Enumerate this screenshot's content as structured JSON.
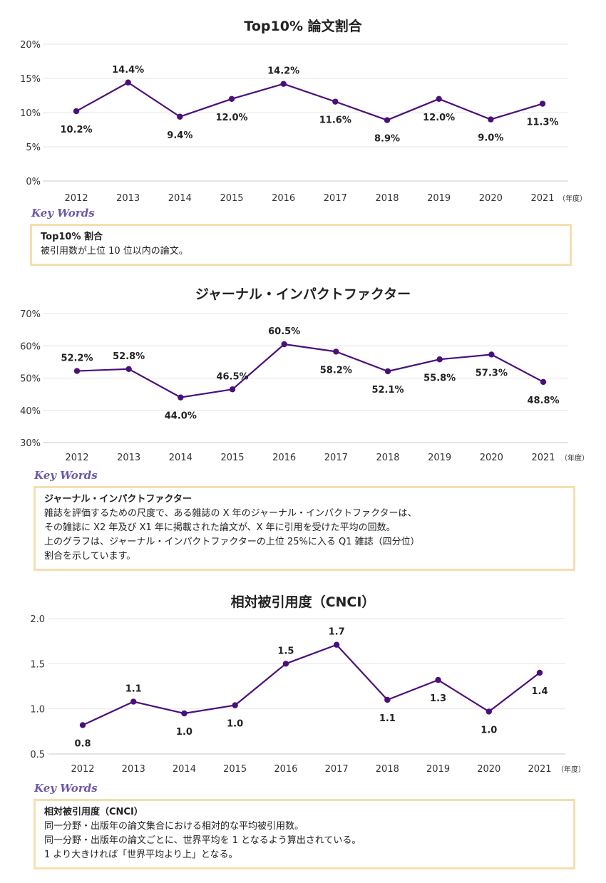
{
  "accent_color": "#4b0f7a",
  "year_unit_label": "（年度）",
  "charts": [
    {
      "title": "Top10% 論文割合",
      "keywords_label": "Key Words",
      "keyword_term": "Top10% 割合",
      "keyword_description": "被引用数が上位 10 位以内の論文。",
      "y_ticks": [
        "0%",
        "5%",
        "10%",
        "15%",
        "20%"
      ],
      "point_labels": [
        "10.2%",
        "14.4%",
        "9.4%",
        "12.0%",
        "14.2%",
        "11.6%",
        "8.9%",
        "12.0%",
        "9.0%",
        "11.3%"
      ]
    },
    {
      "title": "ジャーナル・インパクトファクター",
      "keywords_label": "Key Words",
      "keyword_term": "ジャーナル・インパクトファクター",
      "keyword_description": "雑誌を評価するための尺度で、ある雑誌の X 年のジャーナル・インパクトファクターは、\nその雑誌に X2 年及び X1 年に掲載された論文が、X 年に引用を受けた平均の回数。\n上のグラフは、ジャーナル・インパクトファクターの上位 25%に入る Q1 雑誌（四分位）\n割合を示しています。",
      "y_ticks": [
        "30%",
        "40%",
        "50%",
        "60%",
        "70%"
      ],
      "point_labels": [
        "52.2%",
        "52.8%",
        "44.0%",
        "46.5%",
        "60.5%",
        "58.2%",
        "52.1%",
        "55.8%",
        "57.3%",
        "48.8%"
      ]
    },
    {
      "title": "相対被引用度（CNCI）",
      "keywords_label": "Key Words",
      "keyword_term": "相対被引用度（CNCI）",
      "keyword_description": "同一分野・出版年の論文集合における相対的な平均被引用数。\n同一分野・出版年の論文ごとに、世界平均を 1 となるよう算出されている。\n1 より大きければ「世界平均より上」となる。",
      "y_ticks": [
        "0.5",
        "1.0",
        "1.5",
        "2.0"
      ],
      "point_labels": [
        "0.8",
        "1.1",
        "1.0",
        "1.0",
        "1.5",
        "1.7",
        "1.1",
        "1.3",
        "1.0",
        "1.4"
      ]
    }
  ],
  "chart_data": [
    {
      "type": "line",
      "title": "Top10% 論文割合",
      "x": [
        "2012",
        "2013",
        "2014",
        "2015",
        "2016",
        "2017",
        "2018",
        "2019",
        "2020",
        "2021"
      ],
      "values": [
        10.2,
        14.4,
        9.4,
        12.0,
        14.2,
        11.6,
        8.9,
        12.0,
        9.0,
        11.3
      ],
      "ylim": [
        0,
        20
      ],
      "y_step": 5,
      "y_unit": "%",
      "grid": true,
      "label_positions": [
        "below",
        "above",
        "below",
        "below",
        "above",
        "below",
        "below",
        "below",
        "below",
        "below"
      ]
    },
    {
      "type": "line",
      "title": "ジャーナル・インパクトファクター",
      "x": [
        "2012",
        "2013",
        "2014",
        "2015",
        "2016",
        "2017",
        "2018",
        "2019",
        "2020",
        "2021"
      ],
      "values": [
        52.2,
        52.8,
        44.0,
        46.5,
        60.5,
        58.2,
        52.1,
        55.8,
        57.3,
        48.8
      ],
      "ylim": [
        30,
        70
      ],
      "y_step": 10,
      "y_unit": "%",
      "grid": true,
      "label_positions": [
        "above",
        "above",
        "below",
        "above",
        "above",
        "below",
        "below",
        "below",
        "below",
        "below"
      ]
    },
    {
      "type": "line",
      "title": "相対被引用度（CNCI）",
      "x": [
        "2012",
        "2013",
        "2014",
        "2015",
        "2016",
        "2017",
        "2018",
        "2019",
        "2020",
        "2021"
      ],
      "values": [
        0.82,
        1.08,
        0.95,
        1.04,
        1.5,
        1.71,
        1.1,
        1.32,
        0.97,
        1.4
      ],
      "ylim": [
        0.5,
        2.0
      ],
      "y_step": 0.5,
      "y_unit": "",
      "grid": true,
      "label_positions": [
        "below",
        "above",
        "below",
        "below",
        "above",
        "above",
        "below",
        "below",
        "below",
        "below"
      ]
    }
  ]
}
